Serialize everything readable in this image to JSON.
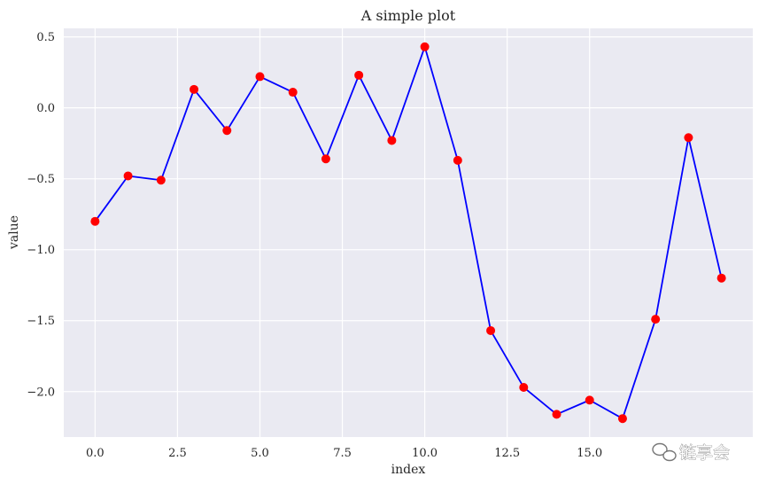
{
  "chart_data": {
    "type": "line",
    "title": "A simple plot",
    "xlabel": "index",
    "ylabel": "value",
    "xlim": [
      -0.95,
      19.95
    ],
    "ylim": [
      -2.32,
      0.56
    ],
    "xticks": [
      0.0,
      2.5,
      5.0,
      7.5,
      10.0,
      12.5,
      15.0
    ],
    "xtick_labels": [
      "0.0",
      "2.5",
      "5.0",
      "7.5",
      "10.0",
      "12.5",
      "15.0"
    ],
    "yticks": [
      0.5,
      0.0,
      -0.5,
      -1.0,
      -1.5,
      -2.0
    ],
    "ytick_labels": [
      "0.5",
      "0.0",
      "−0.5",
      "−1.0",
      "−1.5",
      "−2.0"
    ],
    "grid": true,
    "series": [
      {
        "line_color": "#0000ff",
        "marker_color": "#ff0000",
        "x": [
          0,
          1,
          2,
          3,
          4,
          5,
          6,
          7,
          8,
          9,
          10,
          11,
          12,
          13,
          14,
          15,
          16,
          17,
          18,
          19
        ],
        "y": [
          -0.8,
          -0.48,
          -0.51,
          0.13,
          -0.16,
          0.22,
          0.11,
          -0.36,
          0.23,
          -0.23,
          0.43,
          -0.37,
          -1.57,
          -1.97,
          -2.16,
          -2.06,
          -2.19,
          -1.49,
          -0.21,
          -1.2
        ]
      }
    ],
    "colors": {
      "plot_background": "#eaeaf2",
      "grid": "#ffffff",
      "text": "#262626"
    }
  },
  "watermark": {
    "icon": "chat-bubbles-icon",
    "text": "链享会"
  }
}
